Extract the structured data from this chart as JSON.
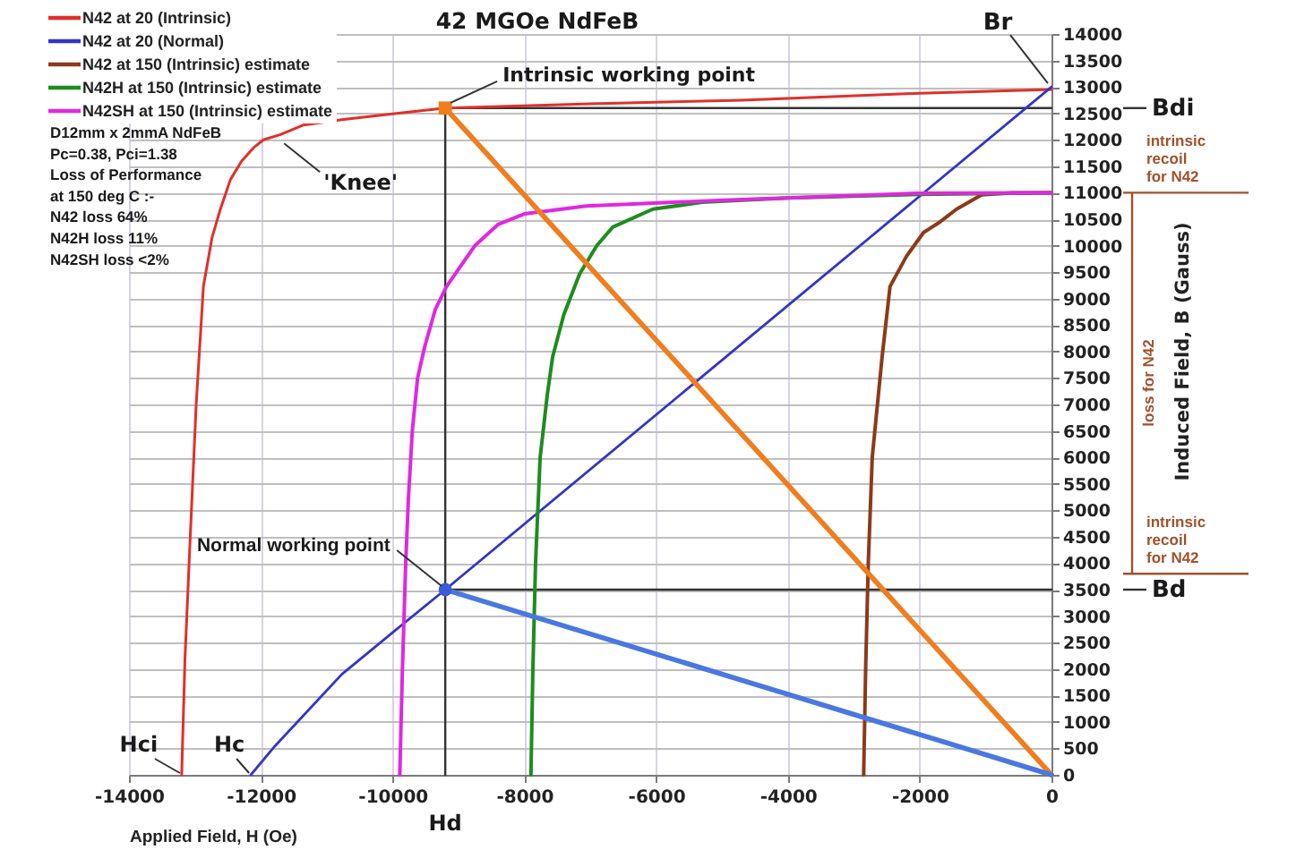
{
  "chart_data": {
    "type": "line",
    "title": "42 MGOe NdFeB",
    "xlabel": "Applied Field, H (Oe)",
    "ylabel": "Induced Field, B (Gauss)",
    "xlim": [
      -14000,
      0
    ],
    "ylim": [
      0,
      14000
    ],
    "xticks": [
      -14000,
      -12000,
      -10000,
      -8000,
      -6000,
      -4000,
      -2000,
      0
    ],
    "yticks": [
      0,
      500,
      1000,
      1500,
      2000,
      2500,
      3000,
      3500,
      4000,
      4500,
      5000,
      5500,
      6000,
      6500,
      7000,
      7500,
      8000,
      8500,
      9000,
      9500,
      10000,
      10500,
      11000,
      11500,
      12000,
      12500,
      13000,
      13500,
      14000
    ],
    "grid": true,
    "legend": "top left",
    "series": [
      {
        "type": "line",
        "color": "#333333",
        "x": [
          -9200,
          -9200,
          0
        ],
        "values": [
          0,
          12600,
          12600
        ]
      },
      {
        "type": "line",
        "color": "#333333",
        "x": [
          -9200,
          0
        ],
        "values": [
          3500,
          3500
        ]
      },
      {
        "name": "N42 at 20 (Intrinsic)",
        "color": "#e0302a",
        "x": [
          -13200,
          -13150,
          -13070,
          -12980,
          -12870,
          -12740,
          -12610,
          -12460,
          -12290,
          -12110,
          -11960,
          -11700,
          -11350,
          -10770,
          -9940,
          -9200,
          -7000,
          -4700,
          -2000,
          0
        ],
        "values": [
          0,
          2200,
          4500,
          7000,
          9230,
          10150,
          10700,
          11250,
          11600,
          11850,
          12000,
          12100,
          12280,
          12380,
          12500,
          12600,
          12680,
          12750,
          12880,
          12950
        ]
      },
      {
        "name": "N42 at 20 (Normal)",
        "color": "#3434c8",
        "x": [
          -12150,
          -11780,
          -10770,
          -9940,
          -9200,
          0
        ],
        "values": [
          0,
          550,
          1900,
          2750,
          3500,
          13000
        ]
      },
      {
        "name": "N42 at 150 (Intrinsic) estimate",
        "color": "#8b3a1a",
        "x": [
          -2850,
          -2820,
          -2780,
          -2720,
          -2570,
          -2450,
          -2200,
          -1940,
          -1690,
          -1440,
          -1060,
          -600,
          0
        ],
        "values": [
          0,
          2000,
          4000,
          6000,
          7900,
          9230,
          9800,
          10250,
          10450,
          10690,
          10960,
          11000,
          11000
        ]
      },
      {
        "name": "N42H at 150 (Intrinsic) estimate",
        "color": "#1e8c1e",
        "x": [
          -7900,
          -7870,
          -7830,
          -7760,
          -7650,
          -7570,
          -7400,
          -7160,
          -6900,
          -6660,
          -6050,
          -5300,
          -4000,
          -2000,
          0
        ],
        "values": [
          0,
          2000,
          4000,
          6000,
          7200,
          7900,
          8700,
          9470,
          10000,
          10350,
          10690,
          10820,
          10900,
          10970,
          11000
        ]
      },
      {
        "name": "N42SH at 150 (Intrinsic) estimate",
        "color": "#e028e0",
        "x": [
          -9890,
          -9850,
          -9800,
          -9760,
          -9700,
          -9620,
          -9510,
          -9350,
          -9180,
          -8750,
          -8400,
          -8000,
          -7060,
          -4970,
          -2020,
          0
        ],
        "values": [
          0,
          2000,
          4000,
          5200,
          6500,
          7500,
          8100,
          8800,
          9230,
          10000,
          10400,
          10600,
          10750,
          10860,
          10990,
          11000
        ]
      },
      {
        "type": "line",
        "color": "#f07d1e",
        "x": [
          -9200,
          0
        ],
        "values": [
          12600,
          0
        ]
      },
      {
        "type": "line",
        "color": "#4a78e0",
        "x": [
          -9200,
          0
        ],
        "values": [
          3500,
          0
        ]
      },
      {
        "type": "scatter",
        "color": "#f07d1e",
        "marker": "square",
        "x": [
          -9200
        ],
        "values": [
          12600
        ]
      },
      {
        "type": "scatter",
        "color": "#3a5ad8",
        "marker": "circle",
        "x": [
          -9200
        ],
        "values": [
          3500
        ]
      }
    ],
    "annotations": [
      {
        "text": "'Knee'",
        "x": -11700,
        "y": 12000
      },
      {
        "text": "Intrinsic working point",
        "x": -9200,
        "y": 12600
      },
      {
        "text": "Normal working point",
        "x": -9200,
        "y": 3500
      },
      {
        "text": "Br",
        "x": 0,
        "y": 13000
      },
      "Bdi",
      "Bd",
      {
        "text": "Hci",
        "x": -13200,
        "y": 0
      },
      {
        "text": "Hc",
        "x": -12150,
        "y": 0
      },
      {
        "text": "Hd",
        "x": -9200,
        "y": 0
      },
      "intrinsic\nrecoil\nfor N42",
      "intrinsic\nrecoil\nfor N42",
      "loss for N42",
      "D12mm x 2mmA NdFeB",
      "Pc=0.38, Pci=1.38",
      "Loss of Performance",
      "at 150 deg C :-",
      "N42 loss 64%",
      "N42H loss 11%",
      "N42SH loss <2%"
    ]
  }
}
